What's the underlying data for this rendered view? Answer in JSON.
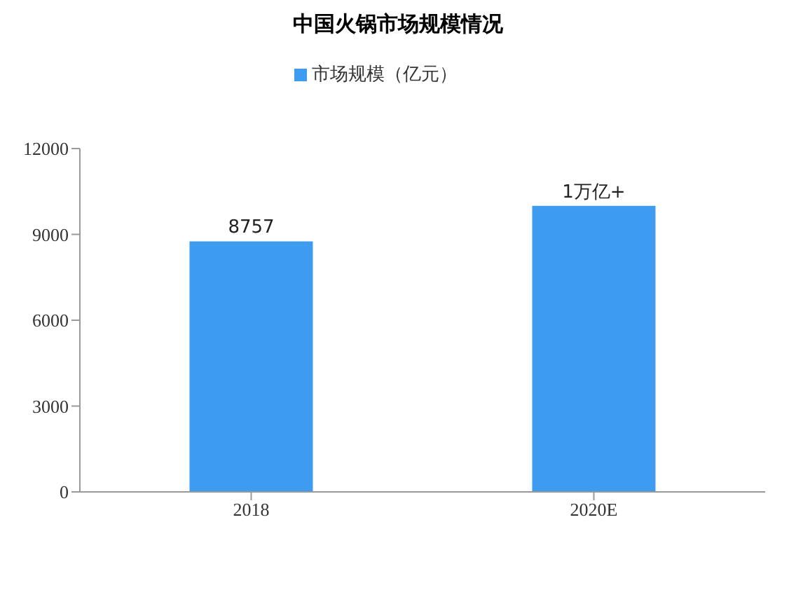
{
  "chart_data": {
    "type": "bar",
    "title": "中国火锅市场规模情况",
    "categories": [
      "2018",
      "2020E"
    ],
    "series": [
      {
        "name": "市场规模（亿元）",
        "color": "#3d9bf0",
        "values": [
          8757,
          10000
        ],
        "value_labels": [
          "8757",
          null
        ]
      }
    ],
    "annotations": [
      {
        "text": "1万亿+",
        "x": "2020E",
        "y": 10000
      }
    ],
    "ylim": [
      0,
      12000
    ],
    "yticks": [
      0,
      3000,
      6000,
      9000,
      12000
    ],
    "grid": false,
    "legend": "top"
  }
}
